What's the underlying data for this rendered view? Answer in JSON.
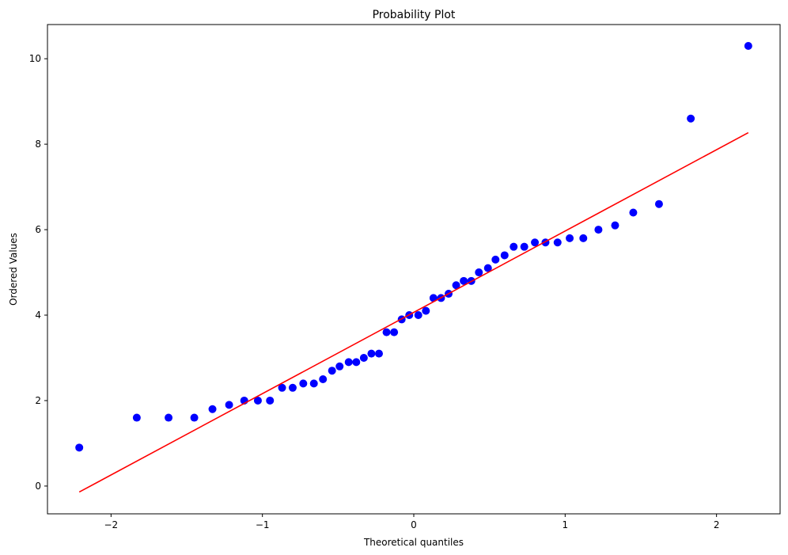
{
  "chart_data": {
    "type": "scatter",
    "title": "Probability Plot",
    "xlabel": "Theoretical quantiles",
    "ylabel": "Ordered Values",
    "xlim": [
      -2.42,
      2.42
    ],
    "ylim": [
      -0.65,
      10.8
    ],
    "xticks": [
      -2,
      -1,
      0,
      1,
      2
    ],
    "xtick_labels": [
      "−2",
      "−1",
      "0",
      "1",
      "2"
    ],
    "yticks": [
      0,
      2,
      4,
      6,
      8,
      10
    ],
    "ytick_labels": [
      "0",
      "2",
      "4",
      "6",
      "8",
      "10"
    ],
    "grid": false,
    "series": [
      {
        "kind": "points",
        "color": "#0000ff",
        "x": [
          -2.21,
          -1.83,
          -1.62,
          -1.45,
          -1.33,
          -1.22,
          -1.12,
          -1.03,
          -0.95,
          -0.87,
          -0.8,
          -0.73,
          -0.66,
          -0.6,
          -0.54,
          -0.49,
          -0.43,
          -0.38,
          -0.33,
          -0.28,
          -0.23,
          -0.18,
          -0.13,
          -0.08,
          -0.03,
          0.03,
          0.08,
          0.13,
          0.18,
          0.23,
          0.28,
          0.33,
          0.38,
          0.43,
          0.49,
          0.54,
          0.6,
          0.66,
          0.73,
          0.8,
          0.87,
          0.95,
          1.03,
          1.12,
          1.22,
          1.33,
          1.45,
          1.62,
          1.83,
          2.21
        ],
        "y": [
          0.9,
          1.6,
          1.6,
          1.6,
          1.8,
          1.9,
          2.0,
          2.0,
          2.0,
          2.3,
          2.3,
          2.4,
          2.4,
          2.5,
          2.7,
          2.8,
          2.9,
          2.9,
          3.0,
          3.1,
          3.1,
          3.6,
          3.6,
          3.9,
          4.0,
          4.0,
          4.1,
          4.4,
          4.4,
          4.5,
          4.7,
          4.8,
          4.8,
          5.0,
          5.1,
          5.3,
          5.4,
          5.6,
          5.6,
          5.7,
          5.7,
          5.7,
          5.8,
          5.8,
          6.0,
          6.1,
          6.4,
          6.6,
          8.6,
          10.3
        ]
      },
      {
        "kind": "fit-line",
        "color": "#ff0000",
        "x": [
          -2.21,
          2.21
        ],
        "y": [
          -0.14,
          8.27
        ]
      }
    ]
  }
}
